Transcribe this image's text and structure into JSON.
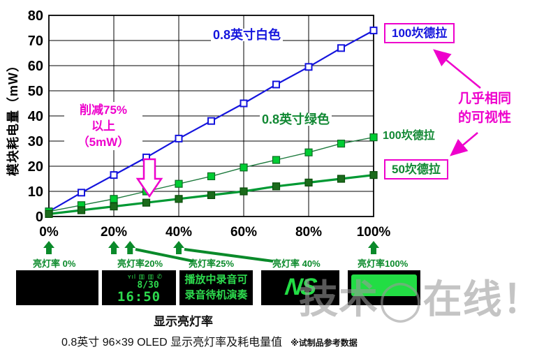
{
  "chart_data": {
    "type": "line",
    "title": "0.8英寸 96×39 OLED 显示亮灯率及耗电量值",
    "xlabel": "显示亮灯率",
    "ylabel": "模块耗电量（mW）",
    "ylim": [
      0,
      80
    ],
    "y_ticks": [
      0,
      10,
      20,
      30,
      40,
      50,
      60,
      70,
      80
    ],
    "x_grid_percents": [
      0,
      20,
      40,
      60,
      80,
      100
    ],
    "x_tick_labels": [
      "0%",
      "20%",
      "40%",
      "60%",
      "80%",
      "100%"
    ],
    "grid": true,
    "x_percent": [
      0,
      10,
      20,
      30,
      40,
      50,
      60,
      70,
      80,
      90,
      100
    ],
    "series": [
      {
        "name": "0.8英寸白色 100坎德拉",
        "values": [
          2,
          9.5,
          16.5,
          23.5,
          31,
          38,
          45,
          52.5,
          59.5,
          67,
          74
        ],
        "color": "#1414dd",
        "line_width": 2.2,
        "marker_fill": "#ffffff",
        "marker_stroke": "#1414dd",
        "marker_stroke_width": 2,
        "marker_size": 9
      },
      {
        "name": "0.8英寸绿色 100坎德拉",
        "values": [
          2,
          4.5,
          7,
          10,
          13,
          16,
          19.5,
          22.5,
          25.5,
          29,
          31.5
        ],
        "color": "#1d7a3d",
        "line_width": 1.4,
        "marker_fill": "#00cc33",
        "marker_stroke": "#0a6b22",
        "marker_stroke_width": 1.2,
        "marker_size": 10
      },
      {
        "name": "0.8英寸绿色 50坎德拉",
        "values": [
          1,
          2.5,
          4,
          5.5,
          7,
          8.5,
          10,
          12,
          13.5,
          15,
          16.5
        ],
        "color": "#009933",
        "line_width": 3.2,
        "marker_fill": "#1b6b1b",
        "marker_stroke": "#0a4d0a",
        "marker_stroke_width": 1.2,
        "marker_size": 10
      }
    ]
  },
  "annotations": {
    "white_label": "0.8英寸白色",
    "green_label": "0.8英寸绿色",
    "reduction": {
      "line1": "削减75%",
      "line2": "以上",
      "line3": "（5mW）"
    },
    "visibility": {
      "line1": "几乎相同",
      "line2": "的可视性"
    },
    "callout_white_100cd": "100坎德拉",
    "callout_green_100cd": "100坎德拉",
    "callout_green_50cd": "50坎德拉"
  },
  "bottom": {
    "indicator_percents": [
      0,
      20,
      25,
      40,
      100
    ],
    "rate_labels": [
      "亮灯率 0%",
      "亮灯率20%",
      "亮灯率25%",
      "亮灯率 40%",
      "亮灯率100%"
    ],
    "panels": {
      "clock": {
        "icons": "ʏıl ▥ ▥ ✆",
        "date": "8/30",
        "time": "16:50"
      },
      "player": {
        "line1": "播放中录音可",
        "line2": "录音待机演奏"
      },
      "logo": {
        "text": "NS"
      }
    },
    "axis_caption": "显示亮灯率"
  },
  "caption": {
    "main": "0.8英寸 96×39 OLED 显示亮灯率及耗电量值",
    "note": "※试制品参考数据"
  },
  "watermark": "技术◯在线！",
  "colors": {
    "blue": "#1414dd",
    "green_bright": "#00cc33",
    "green_dark": "#009933",
    "magenta": "#ee00cc",
    "label_green": "#118833",
    "arrow_green": "#0a8a2a",
    "display_green": "#22dd44"
  }
}
